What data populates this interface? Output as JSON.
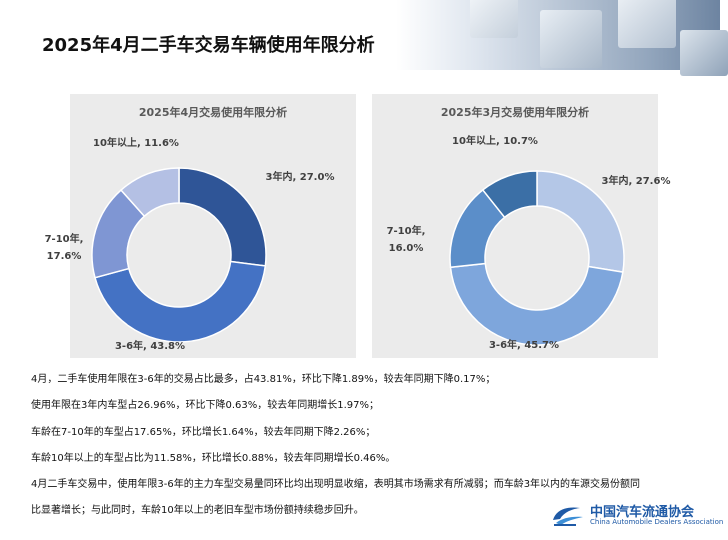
{
  "page": {
    "title": "2025年4月二手车交易车辆使用年限分析"
  },
  "colors": {
    "april": [
      "#2f5597",
      "#4472c4",
      "#7f96d3",
      "#b4c0e4"
    ],
    "march": [
      "#b4c7e7",
      "#7ea6dc",
      "#5b8ec9",
      "#3b6fa6"
    ],
    "panel_bg": "#ebebeb"
  },
  "chart_data": [
    {
      "type": "pie",
      "donut": true,
      "title": "2025年4月交易使用年限分析",
      "categories": [
        "3年内",
        "3-6年",
        "7-10年",
        "10年以上"
      ],
      "values": [
        27.0,
        43.8,
        17.6,
        11.6
      ],
      "labels": [
        [
          "3年内, 27.0%"
        ],
        [
          "3-6年, 43.8%"
        ],
        [
          "7-10年,",
          "17.6%"
        ],
        [
          "10年以上, 11.6%"
        ]
      ]
    },
    {
      "type": "pie",
      "donut": true,
      "title": "2025年3月交易使用年限分析",
      "categories": [
        "3年内",
        "3-6年",
        "7-10年",
        "10年以上"
      ],
      "values": [
        27.6,
        45.7,
        16.0,
        10.7
      ],
      "labels": [
        [
          "3年内, 27.6%"
        ],
        [
          "3-6年, 45.7%"
        ],
        [
          "7-10年,",
          "16.0%"
        ],
        [
          "10年以上, 10.7%"
        ]
      ]
    }
  ],
  "notes": [
    "4月，二手车使用年限在3-6年的交易占比最多，占43.81%，环比下降1.89%，较去年同期下降0.17%；",
    "使用年限在3年内车型占26.96%，环比下降0.63%，较去年同期增长1.97%；",
    "车龄在7-10年的车型占17.65%，环比增长1.64%，较去年同期下降2.26%；",
    "车龄10年以上的车型占比为11.58%，环比增长0.88%，较去年同期增长0.46%。",
    "4月二手车交易中，使用年限3-6年的主力车型交易量同环比均出现明显收缩，表明其市场需求有所减弱；而车龄3年以内的车源交易份额同",
    "比显著增长；与此同时，车龄10年以上的老旧车型市场份额持续稳步回升。"
  ],
  "logo": {
    "name": "中国汽车流通协会",
    "subtitle": "China Automobile Dealers Association",
    "mark": "car-dealers-association-logo"
  }
}
